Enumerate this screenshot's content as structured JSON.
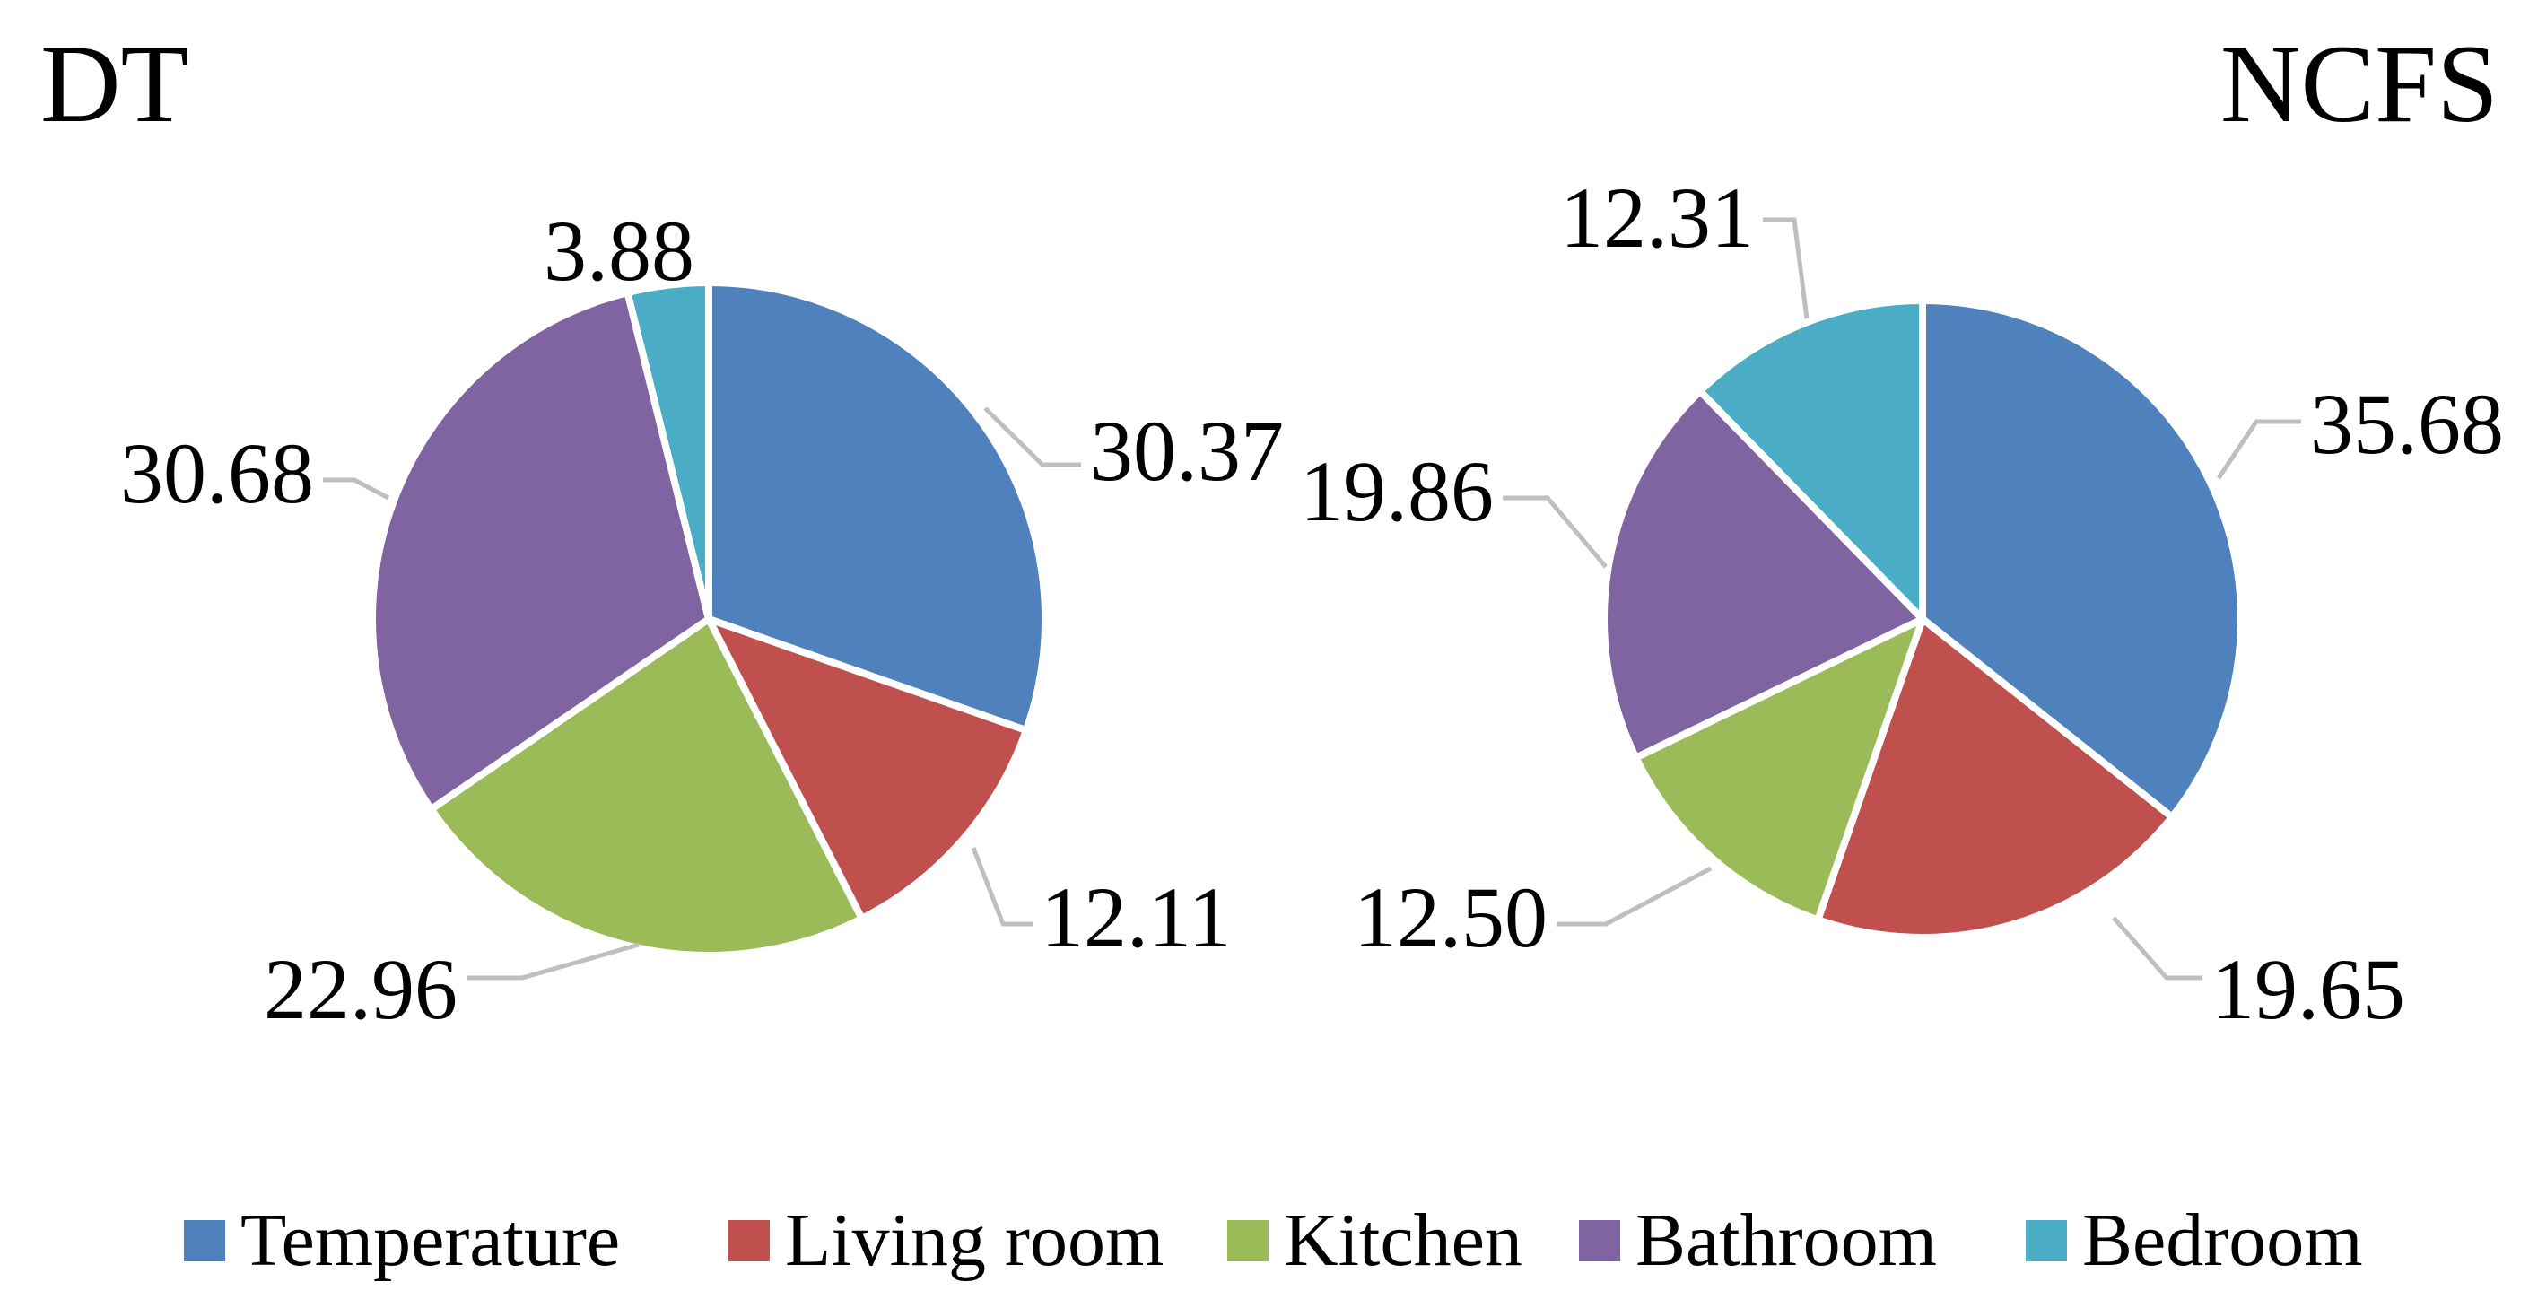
{
  "chart_data": [
    {
      "type": "pie",
      "title": "DT",
      "categories": [
        "Temperature",
        "Living room",
        "Kitchen",
        "Bathroom",
        "Bedroom"
      ],
      "values": [
        30.37,
        12.11,
        22.96,
        30.68,
        3.88
      ],
      "labels": [
        "30.37",
        "12.11",
        "22.96",
        "30.68",
        "3.88"
      ]
    },
    {
      "type": "pie",
      "title": "NCFS",
      "categories": [
        "Temperature",
        "Living room",
        "Kitchen",
        "Bathroom",
        "Bedroom"
      ],
      "values": [
        35.68,
        19.65,
        12.5,
        19.86,
        12.31
      ],
      "labels": [
        "35.68",
        "19.65",
        "12.50",
        "19.86",
        "12.31"
      ]
    }
  ],
  "legend": {
    "placement": "bottom",
    "items": [
      {
        "label": "Temperature",
        "color": "#4f81bd"
      },
      {
        "label": "Living room",
        "color": "#c0504d"
      },
      {
        "label": "Kitchen",
        "color": "#9bbb59"
      },
      {
        "label": "Bathroom",
        "color": "#8064a2"
      },
      {
        "label": "Bedroom",
        "color": "#4bacc6"
      }
    ]
  }
}
